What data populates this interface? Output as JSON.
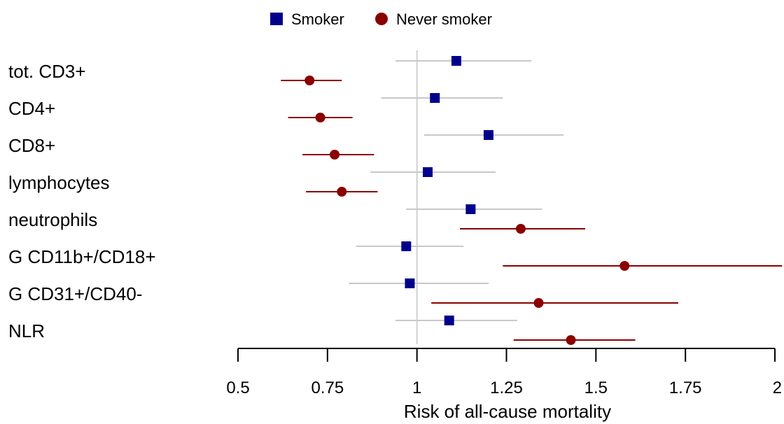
{
  "chart_data": {
    "type": "forest",
    "title": "",
    "xlabel": "Risk of all-cause mortality",
    "xlim": [
      0.5,
      2
    ],
    "xticks": [
      0.5,
      0.75,
      1,
      1.25,
      1.5,
      1.75,
      2
    ],
    "xtick_labels": [
      "0.5",
      "0.75",
      "1",
      "1.25",
      "1.5",
      "1.75",
      "2"
    ],
    "reference_line": 1,
    "legend_position": "top-center",
    "categories": [
      "tot. CD3+",
      "CD4+",
      "CD8+",
      "lymphocytes",
      "neutrophils",
      "G CD11b+/CD18+",
      "G CD31+/CD40-",
      "NLR"
    ],
    "series": [
      {
        "name": "Smoker",
        "marker": "square",
        "marker_color": "#00008B",
        "ci_color": "#C8C8C8",
        "estimates": [
          1.11,
          1.05,
          1.2,
          1.03,
          1.15,
          0.97,
          0.98,
          1.09
        ],
        "ci_low": [
          0.94,
          0.9,
          1.02,
          0.87,
          0.97,
          0.83,
          0.81,
          0.94
        ],
        "ci_high": [
          1.32,
          1.24,
          1.41,
          1.22,
          1.35,
          1.13,
          1.2,
          1.28
        ]
      },
      {
        "name": "Never smoker",
        "marker": "circle",
        "marker_color": "#8B0000",
        "ci_color": "#8B0000",
        "estimates": [
          0.7,
          0.73,
          0.77,
          0.79,
          1.29,
          1.58,
          1.34,
          1.43
        ],
        "ci_low": [
          0.62,
          0.64,
          0.68,
          0.69,
          1.12,
          1.24,
          1.04,
          1.27
        ],
        "ci_high": [
          0.79,
          0.82,
          0.88,
          0.89,
          1.47,
          2.02,
          1.73,
          1.61
        ]
      }
    ]
  }
}
